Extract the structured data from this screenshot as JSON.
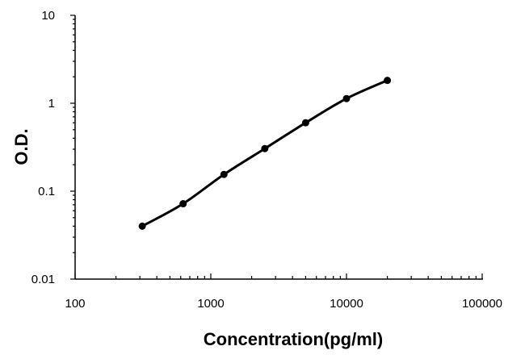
{
  "chart_data": {
    "type": "scatter",
    "xlabel": "Concentration(pg/ml)",
    "ylabel": "O.D.",
    "x_scale": "log",
    "y_scale": "log",
    "xlim": [
      100,
      100000
    ],
    "ylim": [
      0.01,
      10
    ],
    "x_ticks": [
      "100",
      "1000",
      "10000",
      "100000"
    ],
    "y_ticks": [
      "0.01",
      "0.1",
      "1",
      "10"
    ],
    "grid": false,
    "series": [
      {
        "x": [
          312.5,
          625,
          1250,
          2500,
          5000,
          10000,
          20000
        ],
        "y": [
          0.04,
          0.072,
          0.155,
          0.305,
          0.6,
          1.13,
          1.82
        ]
      }
    ]
  }
}
